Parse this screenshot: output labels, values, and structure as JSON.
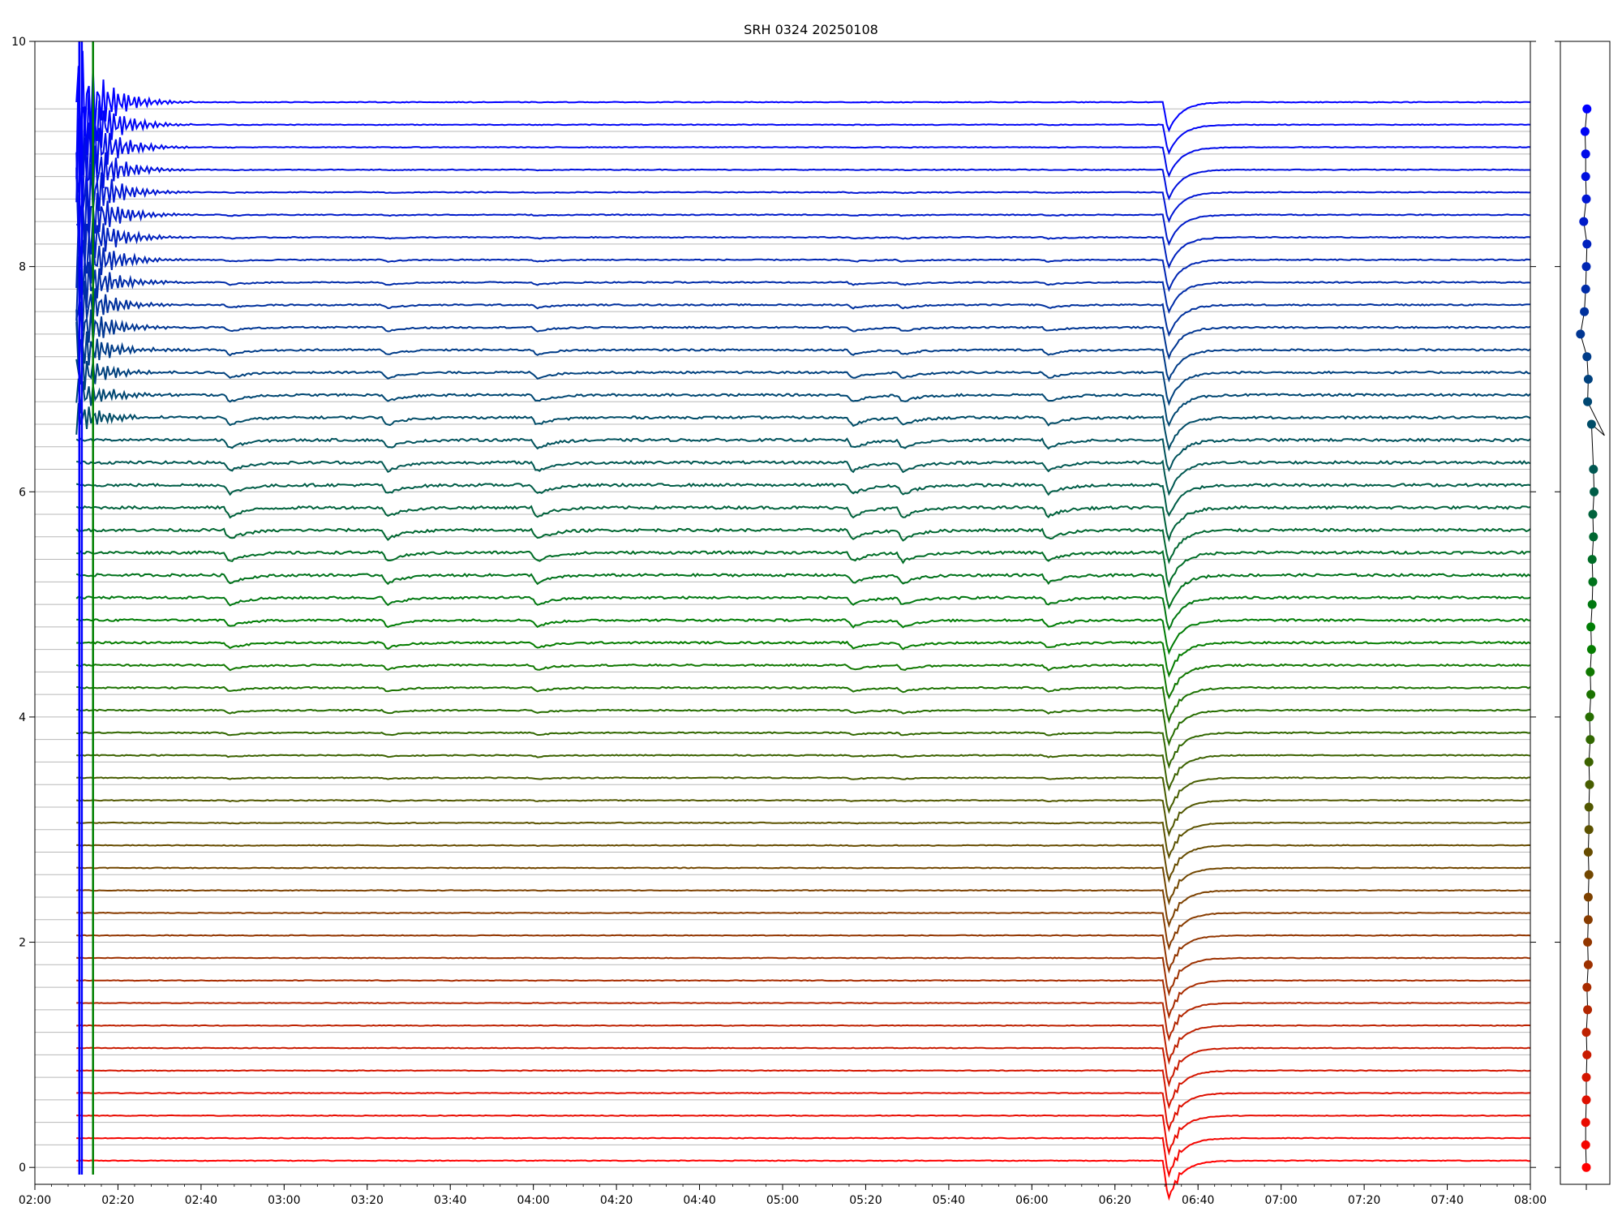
{
  "chart_data": [
    {
      "type": "line",
      "title": "SRH 0324 20250108",
      "xlabel": "",
      "ylabel": "",
      "x_range": [
        "02:00",
        "08:00"
      ],
      "x_tick_labels": [
        "02:00",
        "02:20",
        "02:40",
        "03:00",
        "03:20",
        "03:40",
        "04:00",
        "04:20",
        "04:40",
        "05:00",
        "05:20",
        "05:40",
        "06:00",
        "06:20",
        "06:40",
        "07:00",
        "07:20",
        "07:40",
        "08:00"
      ],
      "ylim": [
        -0.15,
        10
      ],
      "y_tick_labels": [
        "0",
        "2",
        "4",
        "6",
        "8",
        "10"
      ],
      "y_ticks": [
        0,
        2,
        4,
        6,
        8,
        10
      ],
      "series_count": 48,
      "baseline_step": 0.2,
      "color_start": "#ff0000",
      "color_mid": "#008000",
      "color_end": "#0000ff",
      "grid": "horizontal reference lines at each trace baseline",
      "dip_times": [
        "02:47",
        "03:25",
        "04:01",
        "05:17",
        "05:29",
        "06:04",
        "06:33"
      ],
      "main_dip_time": "06:33",
      "start_time": "02:10",
      "end_time": "08:00",
      "legend": "none"
    },
    {
      "type": "scatter",
      "title": "",
      "points": [
        {
          "x": 0.0,
          "y": 0.0
        },
        {
          "x": -0.01,
          "y": 0.2
        },
        {
          "x": -0.01,
          "y": 0.4
        },
        {
          "x": 0.0,
          "y": 0.6
        },
        {
          "x": 0.0,
          "y": 0.8
        },
        {
          "x": 0.01,
          "y": 1.0
        },
        {
          "x": 0.0,
          "y": 1.2
        },
        {
          "x": 0.02,
          "y": 1.4
        },
        {
          "x": 0.01,
          "y": 1.6
        },
        {
          "x": 0.03,
          "y": 1.8
        },
        {
          "x": 0.02,
          "y": 2.0
        },
        {
          "x": 0.03,
          "y": 2.2
        },
        {
          "x": 0.03,
          "y": 2.4
        },
        {
          "x": 0.04,
          "y": 2.6
        },
        {
          "x": 0.03,
          "y": 2.8
        },
        {
          "x": 0.04,
          "y": 3.0
        },
        {
          "x": 0.04,
          "y": 3.2
        },
        {
          "x": 0.05,
          "y": 3.4
        },
        {
          "x": 0.04,
          "y": 3.6
        },
        {
          "x": 0.06,
          "y": 3.8
        },
        {
          "x": 0.05,
          "y": 4.0
        },
        {
          "x": 0.07,
          "y": 4.2
        },
        {
          "x": 0.06,
          "y": 4.4
        },
        {
          "x": 0.08,
          "y": 4.6
        },
        {
          "x": 0.07,
          "y": 4.8
        },
        {
          "x": 0.09,
          "y": 5.0
        },
        {
          "x": 0.1,
          "y": 5.2
        },
        {
          "x": 0.09,
          "y": 5.4
        },
        {
          "x": 0.11,
          "y": 5.6
        },
        {
          "x": 0.1,
          "y": 5.8
        },
        {
          "x": 0.12,
          "y": 6.0
        },
        {
          "x": 0.11,
          "y": 6.2
        },
        {
          "x": 0.08,
          "y": 6.6
        },
        {
          "x": 0.02,
          "y": 6.8
        },
        {
          "x": 0.03,
          "y": 7.0
        },
        {
          "x": 0.01,
          "y": 7.2
        },
        {
          "x": -0.09,
          "y": 7.4
        },
        {
          "x": -0.03,
          "y": 7.6
        },
        {
          "x": -0.01,
          "y": 7.8
        },
        {
          "x": 0.0,
          "y": 8.0
        },
        {
          "x": 0.01,
          "y": 8.2
        },
        {
          "x": -0.04,
          "y": 8.4
        },
        {
          "x": 0.0,
          "y": 8.6
        },
        {
          "x": -0.01,
          "y": 8.8
        },
        {
          "x": -0.01,
          "y": 9.0
        },
        {
          "x": -0.02,
          "y": 9.2
        },
        {
          "x": 0.01,
          "y": 9.4
        }
      ],
      "break_after_y": 6.6,
      "break_x": 0.28,
      "ylim": [
        -0.15,
        10
      ]
    }
  ]
}
